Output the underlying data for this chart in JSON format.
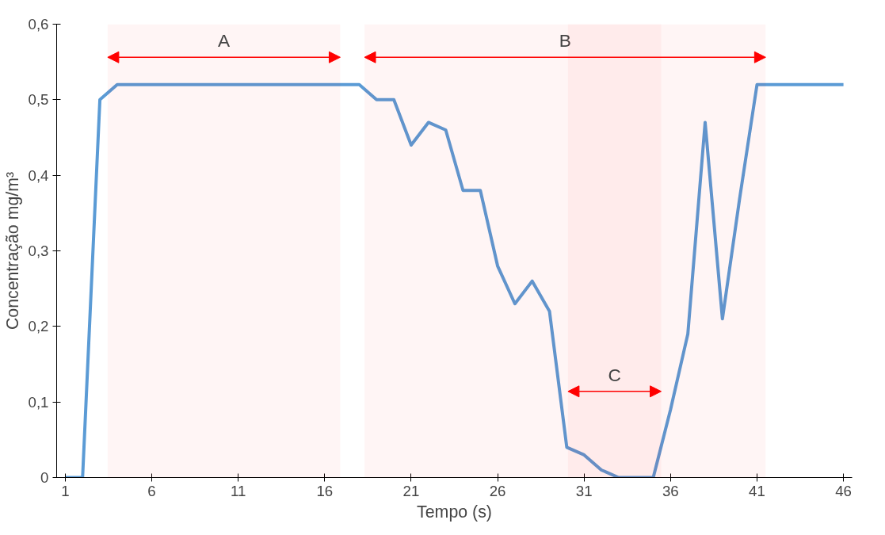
{
  "chart_data": {
    "type": "line",
    "xlabel": "Tempo (s)",
    "ylabel": "Concentração mg/m³",
    "x": [
      1,
      2,
      3,
      4,
      5,
      6,
      7,
      8,
      9,
      10,
      11,
      12,
      13,
      14,
      15,
      16,
      17,
      18,
      19,
      20,
      21,
      22,
      23,
      24,
      25,
      26,
      27,
      28,
      29,
      30,
      31,
      32,
      33,
      34,
      35,
      36,
      37,
      38,
      39,
      40,
      41,
      42,
      43,
      44,
      45,
      46
    ],
    "series": [
      {
        "color": "#5b9bd5",
        "values": [
          0,
          0,
          0.5,
          0.52,
          0.52,
          0.52,
          0.52,
          0.52,
          0.52,
          0.52,
          0.52,
          0.52,
          0.52,
          0.52,
          0.52,
          0.52,
          0.52,
          0.52,
          0.5,
          0.5,
          0.44,
          0.47,
          0.46,
          0.38,
          0.38,
          0.28,
          0.23,
          0.26,
          0.22,
          0.04,
          0.03,
          0.01,
          0,
          0,
          0,
          0.09,
          0.19,
          0.47,
          0.21,
          0.37,
          0.52,
          0.52,
          0.52,
          0.52,
          0.52,
          0.52
        ]
      }
    ],
    "xlim": [
      0.5,
      46.5
    ],
    "xticks": [
      1,
      6,
      11,
      16,
      21,
      26,
      31,
      36,
      41,
      46
    ],
    "ylim": [
      0,
      0.6
    ],
    "yticks": [
      0,
      {
        "value": 0.1,
        "label": "0,1"
      },
      {
        "value": 0.2,
        "label": "0,2"
      },
      {
        "value": 0.3,
        "label": "0,3"
      },
      {
        "value": 0.4,
        "label": "0,4"
      },
      {
        "value": 0.5,
        "label": "0,5"
      },
      {
        "value": 0.6,
        "label": "0,6"
      }
    ],
    "bands": [
      {
        "axis": "x",
        "from": 3.45,
        "to": 16.9,
        "label": "A",
        "color": "#ff0000"
      },
      {
        "axis": "x",
        "from": 18.3,
        "to": 41.5,
        "label": "B",
        "color": "#ff0000"
      },
      {
        "axis": "x",
        "from": 30.07,
        "to": 35.46,
        "label": "C",
        "color": "#ff0000"
      }
    ],
    "grid": false,
    "marker": "none",
    "line_style": "solid"
  }
}
